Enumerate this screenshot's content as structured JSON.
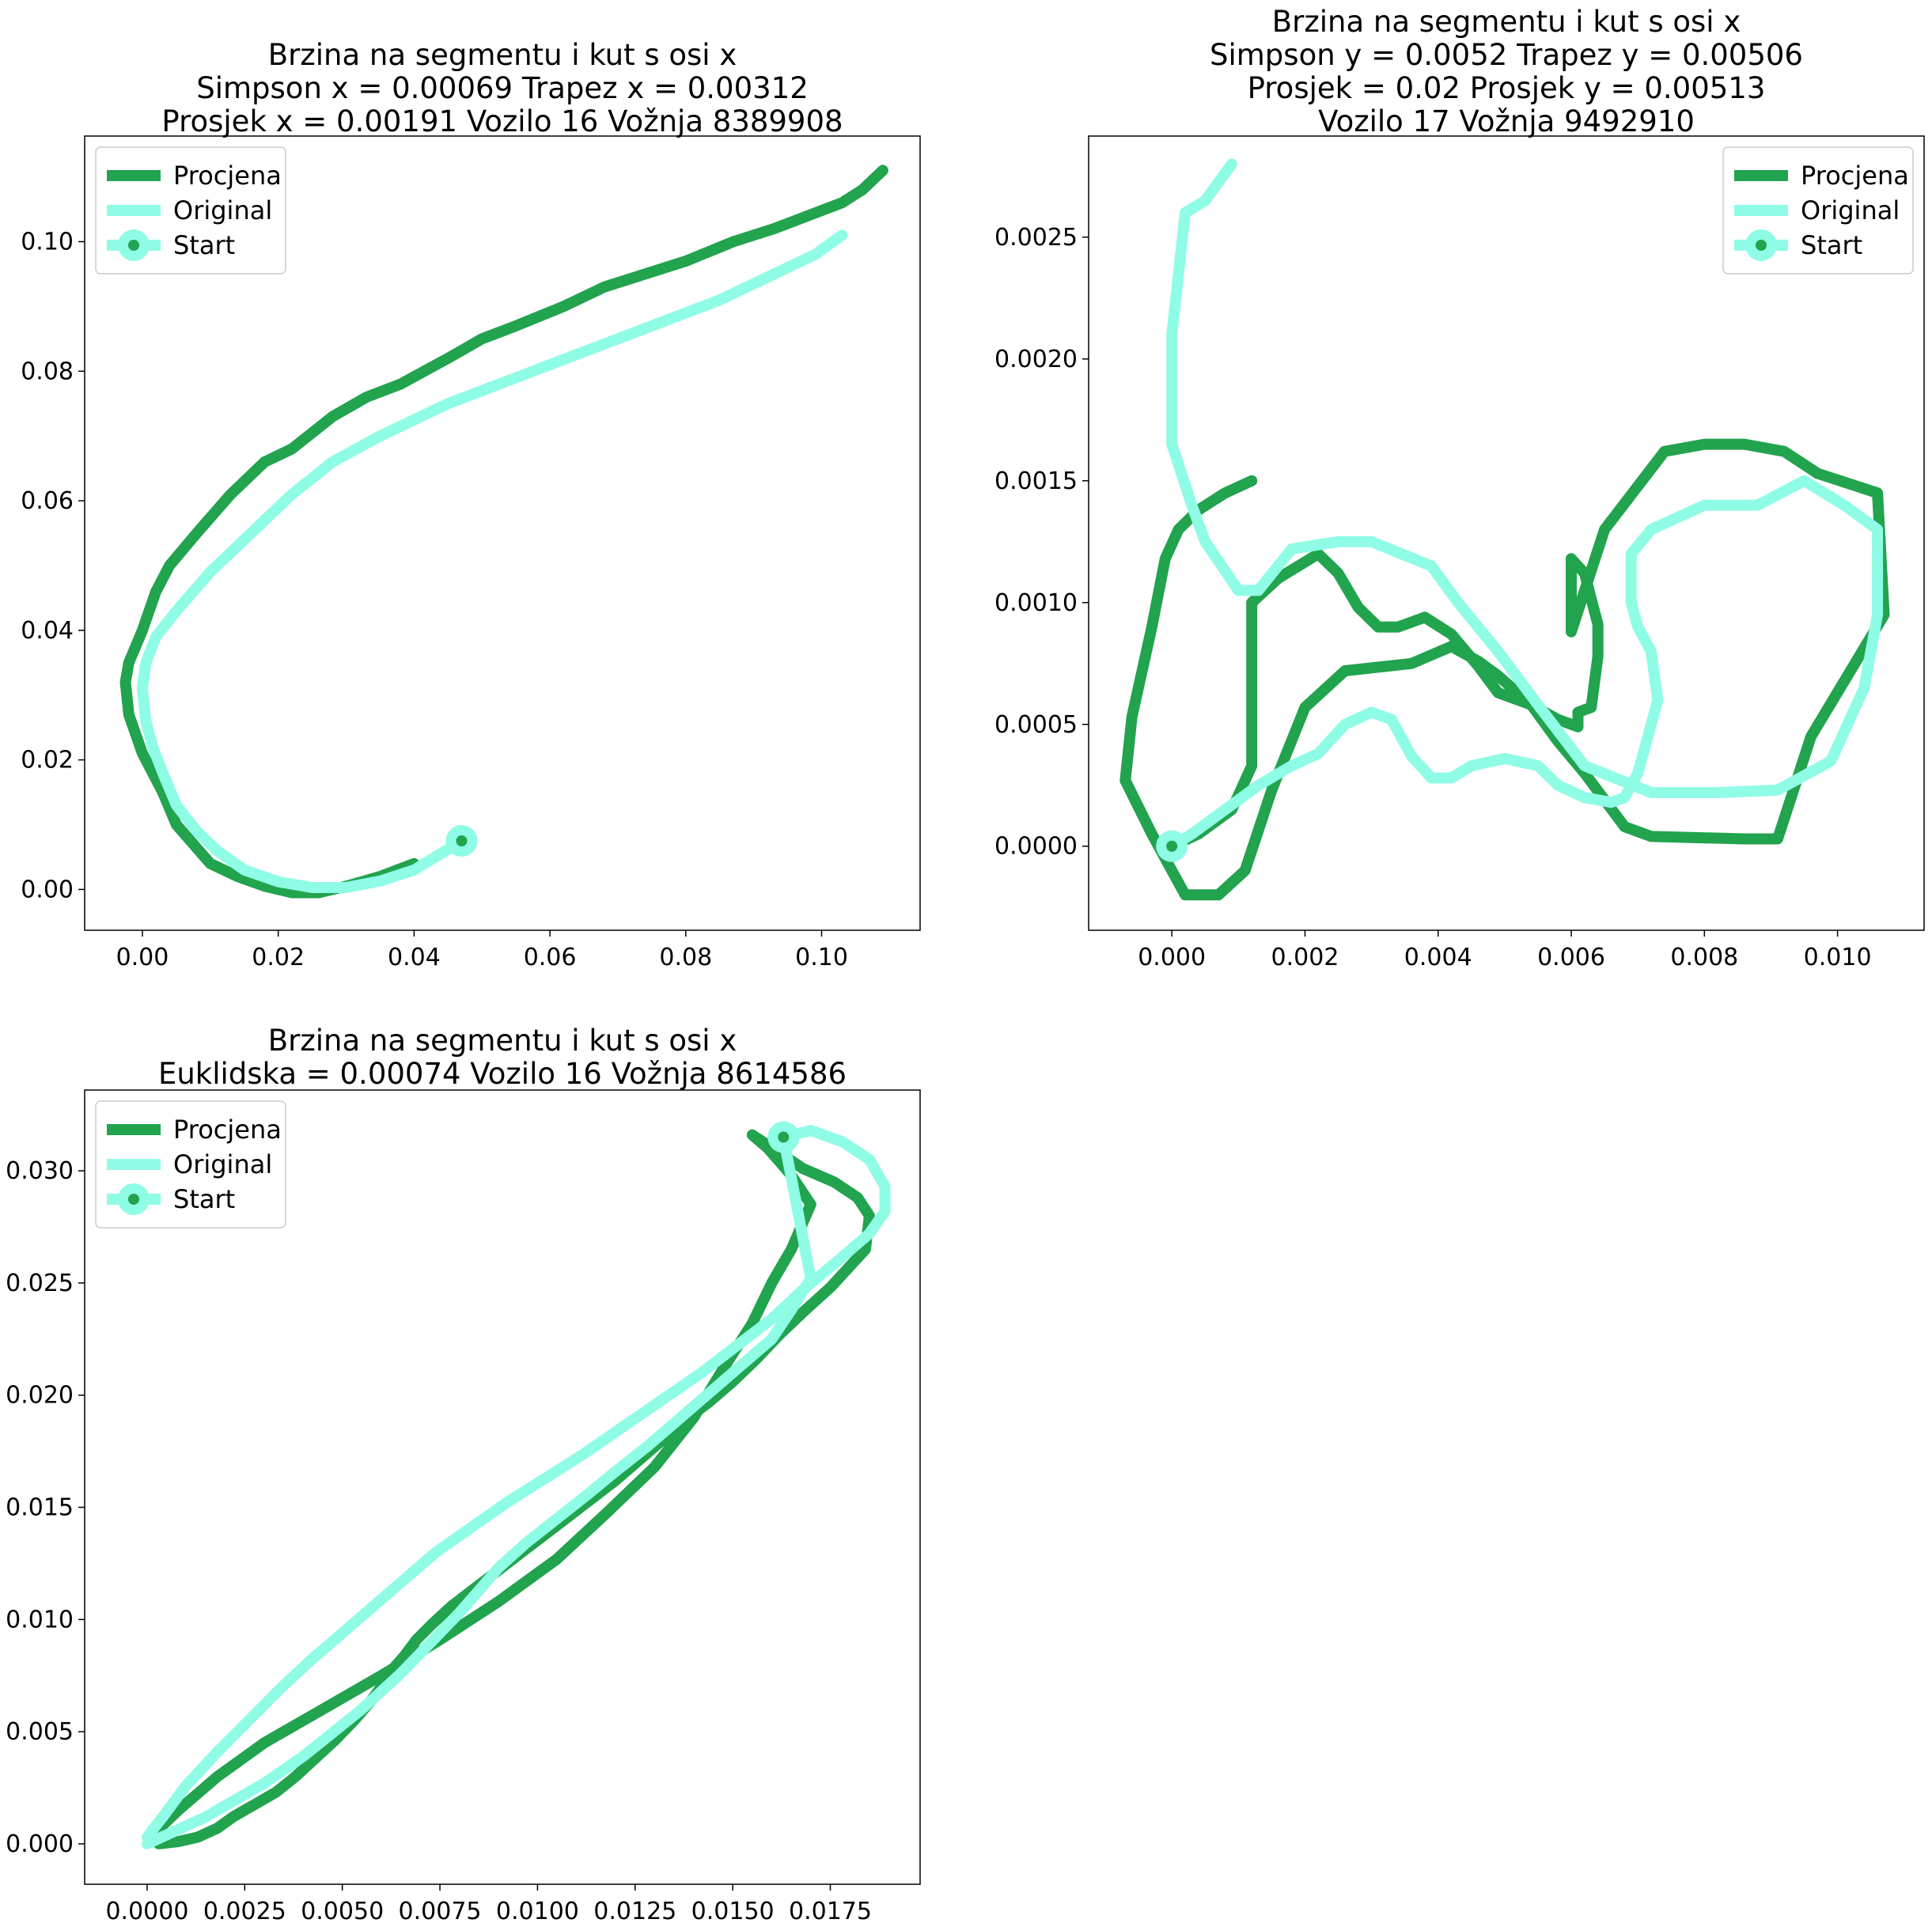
{
  "colors": {
    "procjena": "#22a34e",
    "original": "#8ffce6",
    "start_dot": "#22a34e",
    "axes": "#000000",
    "legend_border": "#cccccc"
  },
  "chart_data": [
    {
      "type": "line",
      "title": [
        "Brzina na segmentu i kut s osi x",
        "Simpson x = 0.00069 Trapez x = 0.00312",
        "Prosjek x = 0.00191 Vozilo 16 Vožnja 8389908"
      ],
      "xlim": [
        -0.0085,
        0.1145
      ],
      "ylim": [
        -0.0063,
        0.1163
      ],
      "xticks": [
        0.0,
        0.02,
        0.04,
        0.06,
        0.08,
        0.1
      ],
      "xtick_labels": [
        "0.00",
        "0.02",
        "0.04",
        "0.06",
        "0.08",
        "0.10"
      ],
      "yticks": [
        0.0,
        0.02,
        0.04,
        0.06,
        0.08,
        0.1
      ],
      "ytick_labels": [
        "0.00",
        "0.02",
        "0.04",
        "0.06",
        "0.08",
        "0.10"
      ],
      "grid": false,
      "legend_position": "upper-left",
      "legend": [
        "Procjena",
        "Original",
        "Start"
      ],
      "series": [
        {
          "name": "Procjena",
          "x": [
            0.04,
            0.035,
            0.03,
            0.026,
            0.022,
            0.018,
            0.014,
            0.01,
            0.005,
            0.003,
            0.0,
            -0.002,
            -0.0025,
            -0.002,
            0.0,
            0.002,
            0.004,
            0.008,
            0.013,
            0.018,
            0.022,
            0.028,
            0.033,
            0.038,
            0.045,
            0.05,
            0.055,
            0.062,
            0.068,
            0.074,
            0.08,
            0.087,
            0.093,
            0.098,
            0.103,
            0.106,
            0.109
          ],
          "y": [
            0.004,
            0.002,
            0.0005,
            -0.0005,
            -0.0005,
            0.0005,
            0.002,
            0.004,
            0.01,
            0.015,
            0.021,
            0.027,
            0.032,
            0.035,
            0.04,
            0.046,
            0.05,
            0.055,
            0.061,
            0.066,
            0.068,
            0.073,
            0.076,
            0.078,
            0.082,
            0.085,
            0.087,
            0.09,
            0.093,
            0.095,
            0.097,
            0.1,
            0.102,
            0.104,
            0.106,
            0.108,
            0.111
          ]
        },
        {
          "name": "Original",
          "x": [
            0.047,
            0.04,
            0.035,
            0.03,
            0.025,
            0.02,
            0.015,
            0.011,
            0.008,
            0.005,
            0.003,
            0.0015,
            0.0005,
            0.0,
            0.0005,
            0.002,
            0.005,
            0.01,
            0.016,
            0.022,
            0.028,
            0.035,
            0.045,
            0.055,
            0.065,
            0.075,
            0.085,
            0.093,
            0.099,
            0.103
          ],
          "y": [
            0.0075,
            0.003,
            0.0013,
            0.0003,
            0.0003,
            0.0012,
            0.003,
            0.006,
            0.009,
            0.013,
            0.018,
            0.022,
            0.026,
            0.031,
            0.035,
            0.039,
            0.043,
            0.049,
            0.055,
            0.061,
            0.066,
            0.07,
            0.075,
            0.079,
            0.083,
            0.087,
            0.091,
            0.095,
            0.098,
            0.101
          ]
        },
        {
          "name": "Start",
          "x": [
            0.047
          ],
          "y": [
            0.0075
          ]
        }
      ]
    },
    {
      "type": "line",
      "title": [
        "Brzina na segmentu i kut s osi x",
        "Simpson y = 0.0052 Trapez y = 0.00506",
        "Prosjek = 0.02 Prosjek y = 0.00513",
        "Vozilo 17 Vožnja 9492910"
      ],
      "xlim": [
        -0.00125,
        0.0113
      ],
      "ylim": [
        -0.000345,
        0.002915
      ],
      "xticks": [
        0.0,
        0.002,
        0.004,
        0.006,
        0.008,
        0.01
      ],
      "xtick_labels": [
        "0.000",
        "0.002",
        "0.004",
        "0.006",
        "0.008",
        "0.010"
      ],
      "yticks": [
        0.0,
        0.0005,
        0.001,
        0.0015,
        0.002,
        0.0025
      ],
      "ytick_labels": [
        "0.0000",
        "0.0005",
        "0.0010",
        "0.0015",
        "0.0020",
        "0.0025"
      ],
      "grid": false,
      "legend_position": "upper-right",
      "legend": [
        "Procjena",
        "Original",
        "Start"
      ],
      "series": [
        {
          "name": "Procjena",
          "x": [
            0.0,
            0.0004,
            0.0009,
            0.0012,
            0.0012,
            0.0016,
            0.0022,
            0.0025,
            0.0028,
            0.0031,
            0.0034,
            0.0038,
            0.0042,
            0.0046,
            0.0049,
            0.0054,
            0.0058,
            0.0061,
            0.0061,
            0.0063,
            0.0064,
            0.0064,
            0.0062,
            0.006,
            0.006,
            0.0065,
            0.0074,
            0.008,
            0.0086,
            0.0092,
            0.0097,
            0.0106,
            0.0107,
            0.0096,
            0.0091,
            0.0086,
            0.0072,
            0.0068,
            0.0062,
            0.0058,
            0.0054,
            0.0049,
            0.0046,
            0.0042,
            0.0036,
            0.0026,
            0.002,
            0.0015,
            0.0011,
            0.0007,
            0.0002,
            -0.0003,
            -0.0007,
            -0.0006,
            -0.0003,
            -0.0001,
            0.0001,
            0.0004,
            0.0008,
            0.0012
          ],
          "y": [
            0.0,
            5e-05,
            0.00015,
            0.00033,
            0.001,
            0.0011,
            0.0012,
            0.00112,
            0.00098,
            0.0009,
            0.0009,
            0.00094,
            0.00087,
            0.00074,
            0.00063,
            0.00058,
            0.00052,
            0.00049,
            0.00055,
            0.00057,
            0.00078,
            0.00091,
            0.00112,
            0.00118,
            0.00088,
            0.0013,
            0.00162,
            0.00165,
            0.00165,
            0.00162,
            0.00153,
            0.00145,
            0.00095,
            0.00045,
            3e-05,
            3e-05,
            4e-05,
            8e-05,
            0.0003,
            0.00043,
            0.00058,
            0.0007,
            0.00076,
            0.00082,
            0.00075,
            0.00072,
            0.00057,
            0.00023,
            -0.0001,
            -0.0002,
            -0.0002,
            5e-05,
            0.00027,
            0.00053,
            0.0009,
            0.00118,
            0.0013,
            0.00138,
            0.00145,
            0.0015
          ]
        },
        {
          "name": "Original",
          "x": [
            0.0,
            0.0003,
            0.0008,
            0.0013,
            0.0018,
            0.0022,
            0.0026,
            0.003,
            0.0033,
            0.0036,
            0.0039,
            0.0042,
            0.0045,
            0.005,
            0.0055,
            0.0058,
            0.0062,
            0.0066,
            0.0068,
            0.007,
            0.0072,
            0.0073,
            0.0072,
            0.007,
            0.0069,
            0.0069,
            0.0072,
            0.008,
            0.0088,
            0.0095,
            0.0101,
            0.0106,
            0.0106,
            0.0104,
            0.0099,
            0.0091,
            0.0082,
            0.0072,
            0.0062,
            0.0055,
            0.0049,
            0.0043,
            0.0039,
            0.003,
            0.0025,
            0.0018,
            0.0013,
            0.001,
            0.0005,
            0.0003,
            0.0,
            0.0,
            0.0002,
            0.0005,
            0.0009
          ],
          "y": [
            0.0,
            5e-05,
            0.00015,
            0.00025,
            0.00033,
            0.00038,
            0.0005,
            0.00055,
            0.00052,
            0.00037,
            0.00028,
            0.00028,
            0.00033,
            0.00036,
            0.00033,
            0.00025,
            0.0002,
            0.00018,
            0.0002,
            0.0003,
            0.0005,
            0.0006,
            0.0008,
            0.0009,
            0.001,
            0.0012,
            0.0013,
            0.0014,
            0.0014,
            0.0015,
            0.0014,
            0.0013,
            0.00095,
            0.00065,
            0.00035,
            0.00023,
            0.00022,
            0.00022,
            0.00033,
            0.00058,
            0.0008,
            0.001,
            0.00115,
            0.00125,
            0.00125,
            0.00122,
            0.00105,
            0.00105,
            0.00125,
            0.0014,
            0.00165,
            0.0021,
            0.0026,
            0.00265,
            0.0028
          ]
        },
        {
          "name": "Start",
          "x": [
            0.0
          ],
          "y": [
            0.0
          ]
        }
      ]
    },
    {
      "type": "line",
      "title": [
        "Brzina na segmentu i kut s osi x",
        "Euklidska = 0.00074 Vozilo 16 Vožnja 8614586"
      ],
      "xlim": [
        -0.0016,
        0.0198
      ],
      "ylim": [
        -0.0018,
        0.0336
      ],
      "xticks": [
        0.0,
        0.0025,
        0.005,
        0.0075,
        0.01,
        0.0125,
        0.015,
        0.0175
      ],
      "xtick_labels": [
        "0.0000",
        "0.0025",
        "0.0050",
        "0.0075",
        "0.0100",
        "0.0125",
        "0.0150",
        "0.0175"
      ],
      "yticks": [
        0.0,
        0.005,
        0.01,
        0.015,
        0.02,
        0.025,
        0.03
      ],
      "ytick_labels": [
        "0.000",
        "0.005",
        "0.010",
        "0.015",
        "0.020",
        "0.025",
        "0.030"
      ],
      "grid": false,
      "legend_position": "upper-left",
      "legend": [
        "Procjena",
        "Original",
        "Start"
      ],
      "series": [
        {
          "name": "Procjena",
          "x": [
            0.0003,
            0.0008,
            0.0013,
            0.0018,
            0.0022,
            0.0024,
            0.0028,
            0.0033,
            0.0038,
            0.0043,
            0.0048,
            0.0053,
            0.0057,
            0.006,
            0.0063,
            0.0066,
            0.0069,
            0.0073,
            0.0078,
            0.0084,
            0.009,
            0.0096,
            0.0102,
            0.0108,
            0.0114,
            0.012,
            0.0126,
            0.0132,
            0.0138,
            0.0144,
            0.015,
            0.0156,
            0.0162,
            0.0168,
            0.0175,
            0.0184,
            0.0185,
            0.0182,
            0.0176,
            0.0168,
            0.0162,
            0.0155,
            0.0159,
            0.0165,
            0.017,
            0.0165,
            0.016,
            0.0155,
            0.0148,
            0.014,
            0.013,
            0.0118,
            0.0105,
            0.009,
            0.0075,
            0.006,
            0.0045,
            0.003,
            0.0018,
            0.0008,
            0.0002
          ],
          "y": [
            0.0,
            0.0001,
            0.0003,
            0.0007,
            0.0012,
            0.0014,
            0.0018,
            0.0023,
            0.003,
            0.0038,
            0.0046,
            0.0055,
            0.0063,
            0.007,
            0.0078,
            0.0084,
            0.0091,
            0.0098,
            0.0106,
            0.0114,
            0.0122,
            0.013,
            0.0138,
            0.0146,
            0.0154,
            0.0162,
            0.0171,
            0.018,
            0.0189,
            0.0197,
            0.0206,
            0.0216,
            0.0227,
            0.0237,
            0.0248,
            0.0265,
            0.028,
            0.0288,
            0.0295,
            0.0301,
            0.0308,
            0.0316,
            0.031,
            0.0298,
            0.0285,
            0.0265,
            0.025,
            0.0232,
            0.0213,
            0.019,
            0.0168,
            0.0148,
            0.0127,
            0.0108,
            0.0091,
            0.0075,
            0.006,
            0.0045,
            0.003,
            0.0015,
            0.0005
          ]
        },
        {
          "name": "Original",
          "x": [
            0.0,
            0.0005,
            0.001,
            0.0015,
            0.002,
            0.0025,
            0.003,
            0.0035,
            0.004,
            0.0045,
            0.005,
            0.0055,
            0.006,
            0.0065,
            0.007,
            0.0075,
            0.008,
            0.0085,
            0.009,
            0.0097,
            0.0105,
            0.0113,
            0.012,
            0.0128,
            0.0136,
            0.0144,
            0.0152,
            0.016,
            0.0165,
            0.017,
            0.0163,
            0.017,
            0.0178,
            0.0185,
            0.0189,
            0.0189,
            0.0185,
            0.0177,
            0.0168,
            0.016,
            0.0151,
            0.0142,
            0.0132,
            0.0122,
            0.0112,
            0.0102,
            0.0092,
            0.0083,
            0.0074,
            0.0066,
            0.0058,
            0.005,
            0.0042,
            0.0034,
            0.0026,
            0.0018,
            0.001,
            0.0004,
            0.0
          ],
          "y": [
            0.0,
            0.0004,
            0.0008,
            0.0012,
            0.0017,
            0.0022,
            0.0027,
            0.0033,
            0.0039,
            0.0046,
            0.0053,
            0.006,
            0.0068,
            0.0076,
            0.0085,
            0.0094,
            0.0103,
            0.0113,
            0.0123,
            0.0134,
            0.0145,
            0.0156,
            0.0166,
            0.0177,
            0.0189,
            0.0201,
            0.0213,
            0.0225,
            0.0238,
            0.0252,
            0.0315,
            0.0318,
            0.0313,
            0.0305,
            0.0293,
            0.0282,
            0.0272,
            0.026,
            0.0247,
            0.0234,
            0.0222,
            0.021,
            0.0198,
            0.0186,
            0.0174,
            0.0163,
            0.0152,
            0.0141,
            0.013,
            0.0118,
            0.0106,
            0.0094,
            0.0082,
            0.0069,
            0.0055,
            0.0041,
            0.0026,
            0.0012,
            0.0003
          ]
        },
        {
          "name": "Start",
          "x": [
            0.0163
          ],
          "y": [
            0.0315
          ]
        }
      ]
    }
  ]
}
